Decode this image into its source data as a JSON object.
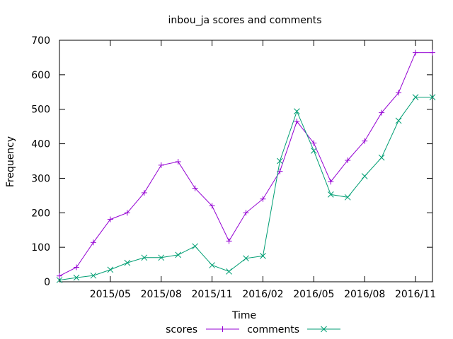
{
  "chart_data": {
    "type": "line",
    "title": "inbou_ja scores and comments",
    "xlabel": "Time",
    "ylabel": "Frequency",
    "ylim": [
      0,
      700
    ],
    "yticks": [
      0,
      100,
      200,
      300,
      400,
      500,
      600,
      700
    ],
    "xlim": [
      "2015-02",
      "2016-12"
    ],
    "xticks": [
      "2015/05",
      "2015/08",
      "2015/11",
      "2016/02",
      "2016/05",
      "2016/08",
      "2016/11"
    ],
    "x": [
      "2015-02",
      "2015-03",
      "2015-04",
      "2015-05",
      "2015-06",
      "2015-07",
      "2015-08",
      "2015-09",
      "2015-10",
      "2015-11",
      "2015-12",
      "2016-01",
      "2016-02",
      "2016-03",
      "2016-04",
      "2016-05",
      "2016-06",
      "2016-07",
      "2016-08",
      "2016-09",
      "2016-10",
      "2016-11",
      "2016-12"
    ],
    "series": [
      {
        "name": "scores",
        "color": "#9400d3",
        "marker": "plus",
        "values": [
          17,
          42,
          114,
          181,
          200,
          258,
          338,
          348,
          271,
          220,
          118,
          200,
          240,
          320,
          465,
          402,
          290,
          352,
          408,
          490,
          548,
          664,
          664
        ]
      },
      {
        "name": "comments",
        "color": "#009e73",
        "marker": "cross",
        "values": [
          5,
          12,
          18,
          35,
          55,
          70,
          70,
          78,
          103,
          48,
          30,
          68,
          75,
          350,
          494,
          380,
          253,
          245,
          306,
          360,
          467,
          535,
          535
        ]
      }
    ],
    "grid": false,
    "legend": "bottom-center"
  }
}
